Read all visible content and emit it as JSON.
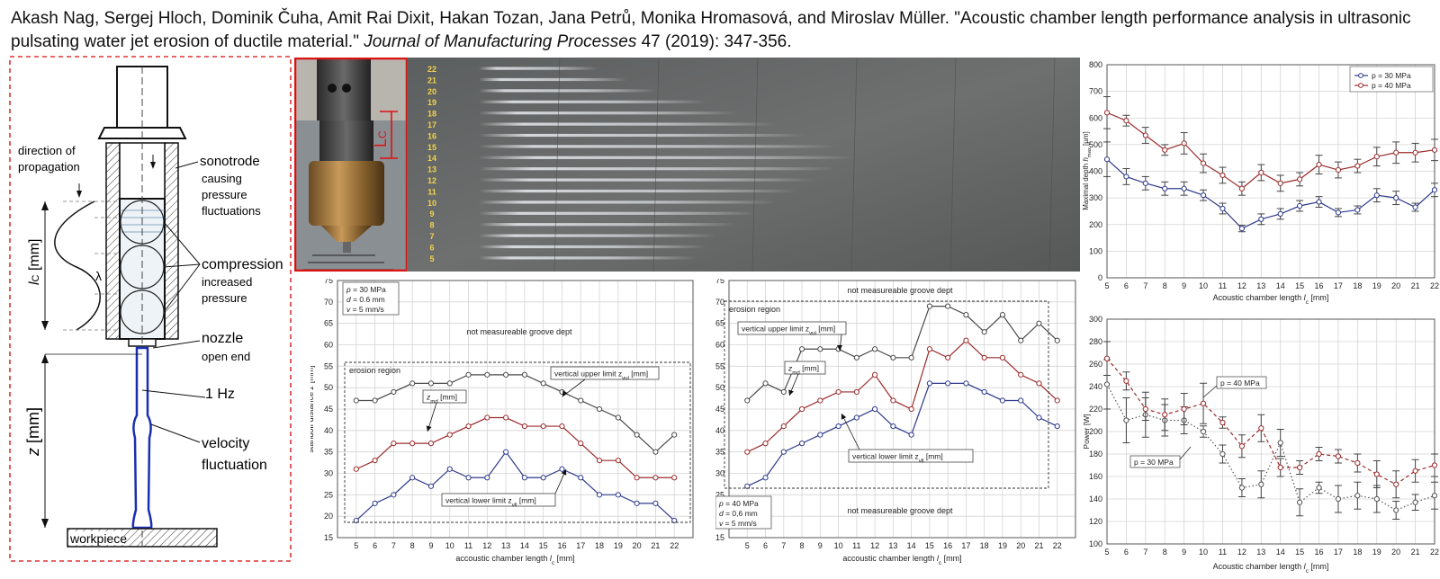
{
  "citation": {
    "authors": "Akash Nag, Sergej Hloch, Dominik Čuha, Amit Rai Dixit, Hakan Tozan, Jana Petrů, Monika Hromasová, and Miroslav Müller. ",
    "title": "\"Acoustic chamber length performance analysis in ultrasonic pulsating water jet erosion of ductile material.\" ",
    "journal": "Journal of Manufacturing Processes",
    "rest": " 47 (2019): 347-356."
  },
  "nozzle_diagram": {
    "labels": {
      "direction": "direction of",
      "propagation": "propagation",
      "sonotrode": "sonotrode",
      "causing": "causing",
      "pressure": "pressure",
      "fluctuations": "fluctuations",
      "compression": "compression",
      "increased": "increased",
      "pressure2": "pressure",
      "nozzle": "nozzle",
      "open_end": "open end",
      "freq": "1 Hz",
      "velocity": "velocity",
      "fluctuation": "fluctuation",
      "workpiece": "workpiece",
      "lc": "l",
      "lc_sub": "C",
      "lc_unit": " [mm]",
      "z": "z",
      "z_unit": " [mm]",
      "lambda": "λ"
    }
  },
  "photo": {
    "lc_label": "L",
    "lc_sub": "C"
  },
  "sample": {
    "numbers": [
      "22",
      "21",
      "20",
      "19",
      "18",
      "17",
      "16",
      "15",
      "14",
      "13",
      "12",
      "11",
      "10",
      "9",
      "8",
      "7",
      "6",
      "5"
    ]
  },
  "chart_data": [
    {
      "type": "line",
      "x": [
        5,
        6,
        7,
        8,
        9,
        10,
        11,
        12,
        13,
        14,
        15,
        16,
        17,
        18,
        19,
        20,
        21,
        22
      ],
      "xlim": [
        5,
        22
      ],
      "ylim": [
        0,
        800
      ],
      "yticks": [
        0,
        100,
        200,
        300,
        400,
        500,
        600,
        700,
        800
      ],
      "xlabel": "Acoustic chamber length",
      "xlabel_var": "l",
      "xlabel_sub": "c",
      "xlabel_unit": " [mm]",
      "ylabel": "Maximal depth",
      "ylabel_var": "h",
      "ylabel_sub": "max",
      "ylabel_unit": " [µm]",
      "legend_position": "top-right",
      "grid": true,
      "series": [
        {
          "name": "p = 30 MPa",
          "color": "#2e3a8c",
          "values": [
            445,
            380,
            355,
            335,
            335,
            310,
            260,
            185,
            220,
            240,
            270,
            285,
            245,
            255,
            310,
            300,
            265,
            330
          ],
          "err": [
            65,
            30,
            25,
            25,
            25,
            20,
            20,
            12,
            20,
            20,
            20,
            20,
            15,
            15,
            25,
            25,
            15,
            25
          ]
        },
        {
          "name": "p = 40 MPa",
          "color": "#9c2b2b",
          "values": [
            620,
            590,
            535,
            480,
            505,
            430,
            385,
            335,
            395,
            355,
            370,
            425,
            405,
            420,
            455,
            470,
            470,
            480
          ],
          "err": [
            60,
            20,
            30,
            20,
            40,
            35,
            30,
            25,
            30,
            30,
            25,
            35,
            30,
            25,
            35,
            40,
            35,
            40
          ]
        }
      ]
    },
    {
      "type": "line",
      "x": [
        5,
        6,
        7,
        8,
        9,
        10,
        11,
        12,
        13,
        14,
        15,
        16,
        17,
        18,
        19,
        20,
        21,
        22
      ],
      "xlim": [
        5,
        22
      ],
      "ylim": [
        100,
        300
      ],
      "yticks": [
        100,
        120,
        140,
        160,
        180,
        200,
        220,
        240,
        260,
        280,
        300
      ],
      "xlabel": "Acoustic chamber length",
      "xlabel_var": "l",
      "xlabel_sub": "c",
      "xlabel_unit": " [mm]",
      "ylabel": "Power [W]",
      "grid": true,
      "series": [
        {
          "name": "p = 30 MPa",
          "color": "#555555",
          "values": [
            242,
            210,
            215,
            210,
            210,
            200,
            180,
            150,
            153,
            190,
            137,
            150,
            140,
            143,
            140,
            130,
            137,
            143
          ],
          "err": [
            22,
            20,
            20,
            14,
            12,
            5,
            8,
            8,
            12,
            12,
            12,
            5,
            12,
            12,
            12,
            8,
            7,
            12
          ]
        },
        {
          "name": "p = 40 MPa",
          "color": "#9c2b2b",
          "values": [
            265,
            245,
            220,
            215,
            220,
            225,
            208,
            187,
            203,
            168,
            168,
            180,
            178,
            172,
            162,
            153,
            165,
            170
          ],
          "err": [
            15,
            8,
            10,
            14,
            14,
            18,
            5,
            10,
            12,
            8,
            6,
            6,
            6,
            8,
            12,
            12,
            10,
            10
          ]
        }
      ]
    },
    {
      "type": "line",
      "x": [
        5,
        6,
        7,
        8,
        9,
        10,
        11,
        12,
        13,
        14,
        15,
        16,
        17,
        18,
        19,
        20,
        21,
        22
      ],
      "xlim": [
        4,
        23
      ],
      "ylim": [
        15,
        75
      ],
      "yticks": [
        15,
        20,
        25,
        30,
        35,
        40,
        45,
        50,
        55,
        60,
        65,
        70,
        75
      ],
      "xlabel": "accoustic chamber length",
      "xlabel_var": "l",
      "xlabel_sub": "c",
      "xlabel_unit": " [mm]",
      "ylabel": "standoff distance",
      "ylabel_var": "z",
      "ylabel_unit": " [mm]",
      "grid": true,
      "params": [
        "p = 30 MPa",
        "d = 0.6 mm",
        "v = 5 mm/s"
      ],
      "texts": {
        "top": "not measureable groove dept",
        "region": "erosion region",
        "upper": "vertical upper limit z",
        "upper_sub": "vul",
        "upper_unit": " [mm]",
        "mid": "z",
        "mid_sub": "md",
        "mid_unit": " [mm]",
        "lower": "vertical lower limit z",
        "lower_sub": "vll",
        "lower_unit": " [mm]"
      },
      "series": [
        {
          "name": "upper",
          "color": "#4a4a4a",
          "values": [
            47,
            47,
            49,
            51,
            51,
            51,
            53,
            53,
            53,
            53,
            51,
            49,
            47,
            45,
            43,
            39,
            35,
            39
          ]
        },
        {
          "name": "mid",
          "color": "#9c2b2b",
          "values": [
            31,
            33,
            37,
            37,
            37,
            39,
            41,
            43,
            43,
            41,
            41,
            41,
            37,
            33,
            33,
            29,
            29,
            29
          ]
        },
        {
          "name": "lower",
          "color": "#2e3a8c",
          "values": [
            19,
            23,
            25,
            29,
            27,
            31,
            29,
            29,
            35,
            29,
            29,
            31,
            29,
            25,
            25,
            23,
            23,
            19
          ]
        }
      ]
    },
    {
      "type": "line",
      "x": [
        5,
        6,
        7,
        8,
        9,
        10,
        11,
        12,
        13,
        14,
        15,
        16,
        17,
        18,
        19,
        20,
        21,
        22
      ],
      "xlim": [
        4,
        23
      ],
      "ylim": [
        15,
        75
      ],
      "yticks": [
        15,
        20,
        25,
        30,
        35,
        40,
        45,
        50,
        55,
        60,
        65,
        70,
        75
      ],
      "xlabel": "accoustic chamber length",
      "xlabel_var": "l",
      "xlabel_sub": "c",
      "xlabel_unit": " [mm]",
      "ylabel": "standoff distance",
      "ylabel_var": "z",
      "ylabel_unit": " [mm]",
      "grid": true,
      "params": [
        "p = 40 MPa",
        "d = 0,6 mm",
        "v = 5 mm/s"
      ],
      "texts": {
        "top": "not measureable groove dept",
        "bottom": "not measureable groove dept",
        "region": "erosion region",
        "upper": "vertical upper limit z",
        "upper_sub": "vul",
        "upper_unit": " [mm]",
        "mid": "z",
        "mid_sub": "md",
        "mid_unit": " [mm]",
        "lower": "vertical lower limit z",
        "lower_sub": "vll",
        "lower_unit": " [mm]"
      },
      "series": [
        {
          "name": "upper",
          "color": "#4a4a4a",
          "values": [
            47,
            51,
            49,
            59,
            59,
            59,
            57,
            59,
            57,
            57,
            69,
            69,
            67,
            63,
            67,
            61,
            65,
            61
          ]
        },
        {
          "name": "mid",
          "color": "#9c2b2b",
          "values": [
            35,
            37,
            41,
            45,
            47,
            49,
            49,
            53,
            47,
            45,
            59,
            57,
            61,
            57,
            57,
            53,
            51,
            47
          ]
        },
        {
          "name": "lower",
          "color": "#2e3a8c",
          "values": [
            27,
            29,
            35,
            37,
            39,
            41,
            43,
            45,
            41,
            39,
            51,
            51,
            51,
            49,
            47,
            47,
            43,
            41
          ]
        }
      ]
    }
  ]
}
